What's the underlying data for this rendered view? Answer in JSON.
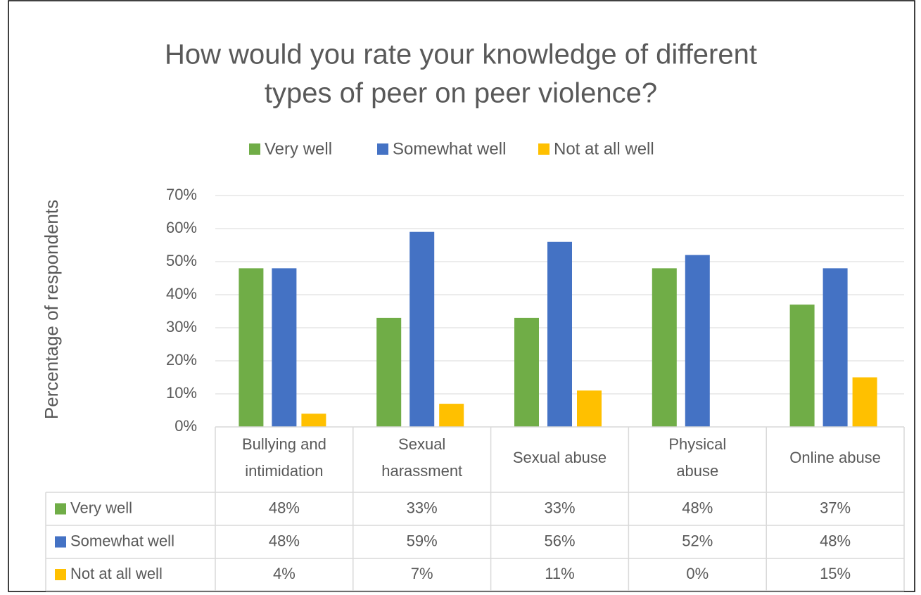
{
  "chart_data": {
    "type": "bar",
    "title": [
      "How would you rate your knowledge of different",
      "types of peer on peer violence?"
    ],
    "y_label": "Percentage of respondents",
    "categories": [
      [
        "Bullying and",
        "intimidation"
      ],
      [
        "Sexual",
        "harassment"
      ],
      [
        "Sexual abuse"
      ],
      [
        "Physical",
        "abuse"
      ],
      [
        "Online abuse"
      ]
    ],
    "series": [
      {
        "name": "Very well",
        "color": "#70ad47",
        "values": [
          48,
          33,
          33,
          48,
          37
        ],
        "value_labels": [
          "48%",
          "33%",
          "33%",
          "48%",
          "37%"
        ]
      },
      {
        "name": "Somewhat well",
        "color": "#4472c4",
        "values": [
          48,
          59,
          56,
          52,
          48
        ],
        "value_labels": [
          "48%",
          "59%",
          "56%",
          "52%",
          "48%"
        ]
      },
      {
        "name": "Not at all well",
        "color": "#ffc000",
        "values": [
          4,
          7,
          11,
          0,
          15
        ],
        "value_labels": [
          "4%",
          "7%",
          "11%",
          "0%",
          "15%"
        ]
      }
    ],
    "ylim": [
      0,
      70
    ],
    "yticks": [
      {
        "value": 0,
        "label": "0%"
      },
      {
        "value": 10,
        "label": "10%"
      },
      {
        "value": 20,
        "label": "20%"
      },
      {
        "value": 30,
        "label": "30%"
      },
      {
        "value": 40,
        "label": "40%"
      },
      {
        "value": 50,
        "label": "50%"
      },
      {
        "value": 60,
        "label": "60%"
      },
      {
        "value": 70,
        "label": "70%"
      }
    ],
    "grid": true,
    "legend": "top"
  }
}
